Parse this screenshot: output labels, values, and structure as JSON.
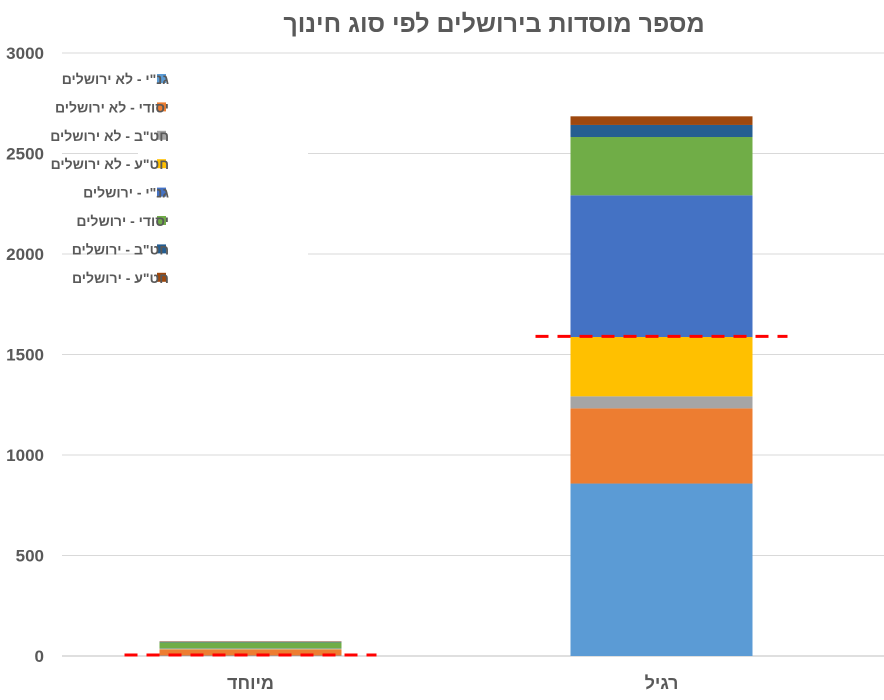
{
  "chart_data": {
    "type": "bar",
    "stacked": true,
    "title": "מספר מוסדות בירושלים לפי סוג חינוך",
    "categories": [
      "מיוחד",
      "רגיל"
    ],
    "ylim": [
      0,
      3000
    ],
    "yticks": [
      0,
      500,
      1000,
      1500,
      2000,
      2500,
      3000
    ],
    "grid": true,
    "legend_position": "top-left",
    "series": [
      {
        "name": "גנ\"י - לא ירושלים",
        "color": "#5b9bd5",
        "values": [
          2,
          858
        ]
      },
      {
        "name": "יסודי - לא ירושלים",
        "color": "#ed7d31",
        "values": [
          30,
          374
        ]
      },
      {
        "name": "חט\"ב - לא ירושלים",
        "color": "#a5a5a5",
        "values": [
          2,
          60
        ]
      },
      {
        "name": "חט\"ע - לא ירושלים",
        "color": "#ffc000",
        "values": [
          2,
          295
        ]
      },
      {
        "name": "גנ\"י - ירושלים",
        "color": "#4472c4",
        "values": [
          2,
          705
        ]
      },
      {
        "name": "יסודי - ירושלים",
        "color": "#70ad47",
        "values": [
          30,
          290
        ]
      },
      {
        "name": "חט\"ב - ירושלים",
        "color": "#255e91",
        "values": [
          3,
          60
        ]
      },
      {
        "name": "חט\"ע - ירושלים",
        "color": "#9e480e",
        "values": [
          2,
          43
        ]
      }
    ],
    "reference_lines": [
      {
        "category": "מיוחד",
        "value": 5,
        "color": "#ff0000",
        "style": "dashed"
      },
      {
        "category": "רגיל",
        "value": 1590,
        "color": "#ff0000",
        "style": "dashed"
      }
    ]
  }
}
